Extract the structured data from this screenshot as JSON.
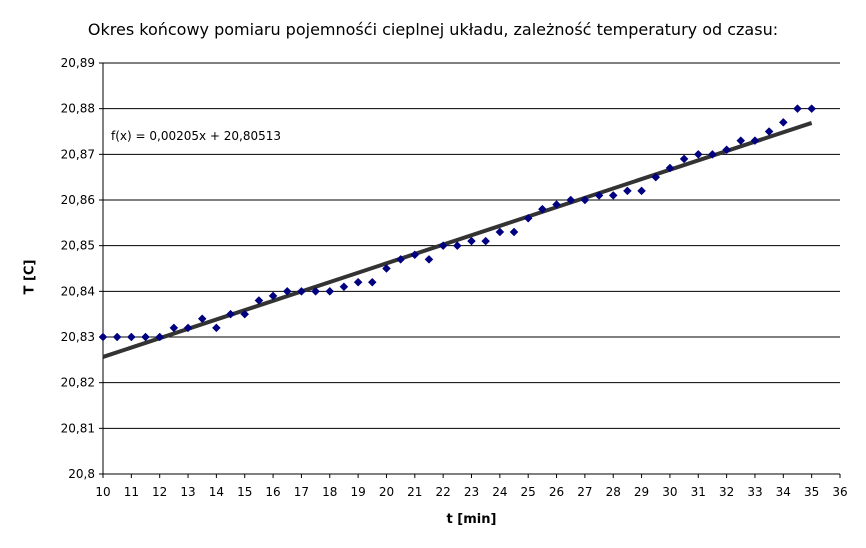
{
  "chart_data": {
    "type": "scatter",
    "title": "Okres końcowy pomiaru pojemnośći cieplnej układu, zależność temperatury od czasu:",
    "xlabel": "t [min]",
    "ylabel": "T [C]",
    "xlim": [
      10,
      36
    ],
    "ylim": [
      20.8,
      20.89
    ],
    "x_ticks": [
      "10",
      "11",
      "12",
      "13",
      "14",
      "15",
      "16",
      "17",
      "18",
      "19",
      "20",
      "21",
      "22",
      "23",
      "24",
      "25",
      "26",
      "27",
      "28",
      "29",
      "30",
      "31",
      "32",
      "33",
      "34",
      "35",
      "36"
    ],
    "y_ticks": [
      "20,8",
      "20,81",
      "20,82",
      "20,83",
      "20,84",
      "20,85",
      "20,86",
      "20,87",
      "20,88",
      "20,89"
    ],
    "grid": "horizontal",
    "series": [
      {
        "color": "#000080",
        "marker": "diamond",
        "x": [
          10,
          10.5,
          11,
          11.5,
          12,
          12.5,
          13,
          13.5,
          14,
          14.5,
          15,
          15.5,
          16,
          16.5,
          17,
          17.5,
          18,
          18.5,
          19,
          19.5,
          20,
          20.5,
          21,
          21.5,
          22,
          22.5,
          23,
          23.5,
          24,
          24.5,
          25,
          25.5,
          26,
          26.5,
          27,
          27.5,
          28,
          28.5,
          29,
          29.5,
          30,
          30.5,
          31,
          31.5,
          32,
          32.5,
          33,
          33.5,
          34,
          34.5,
          35
        ],
        "y": [
          20.83,
          20.83,
          20.83,
          20.83,
          20.83,
          20.832,
          20.832,
          20.834,
          20.832,
          20.835,
          20.835,
          20.838,
          20.839,
          20.84,
          20.84,
          20.84,
          20.84,
          20.841,
          20.842,
          20.842,
          20.845,
          20.847,
          20.848,
          20.847,
          20.85,
          20.85,
          20.851,
          20.851,
          20.853,
          20.853,
          20.856,
          20.858,
          20.859,
          20.86,
          20.86,
          20.861,
          20.861,
          20.862,
          20.862,
          20.865,
          20.867,
          20.869,
          20.87,
          20.87,
          20.871,
          20.873,
          20.873,
          20.875,
          20.877,
          20.88,
          20.88
        ]
      }
    ],
    "trendline": {
      "slope": 0.00205,
      "intercept": 20.80513,
      "x_range": [
        10,
        35
      ],
      "color": "#333333",
      "label": "f(x) = 0,00205x + 20,80513"
    }
  }
}
